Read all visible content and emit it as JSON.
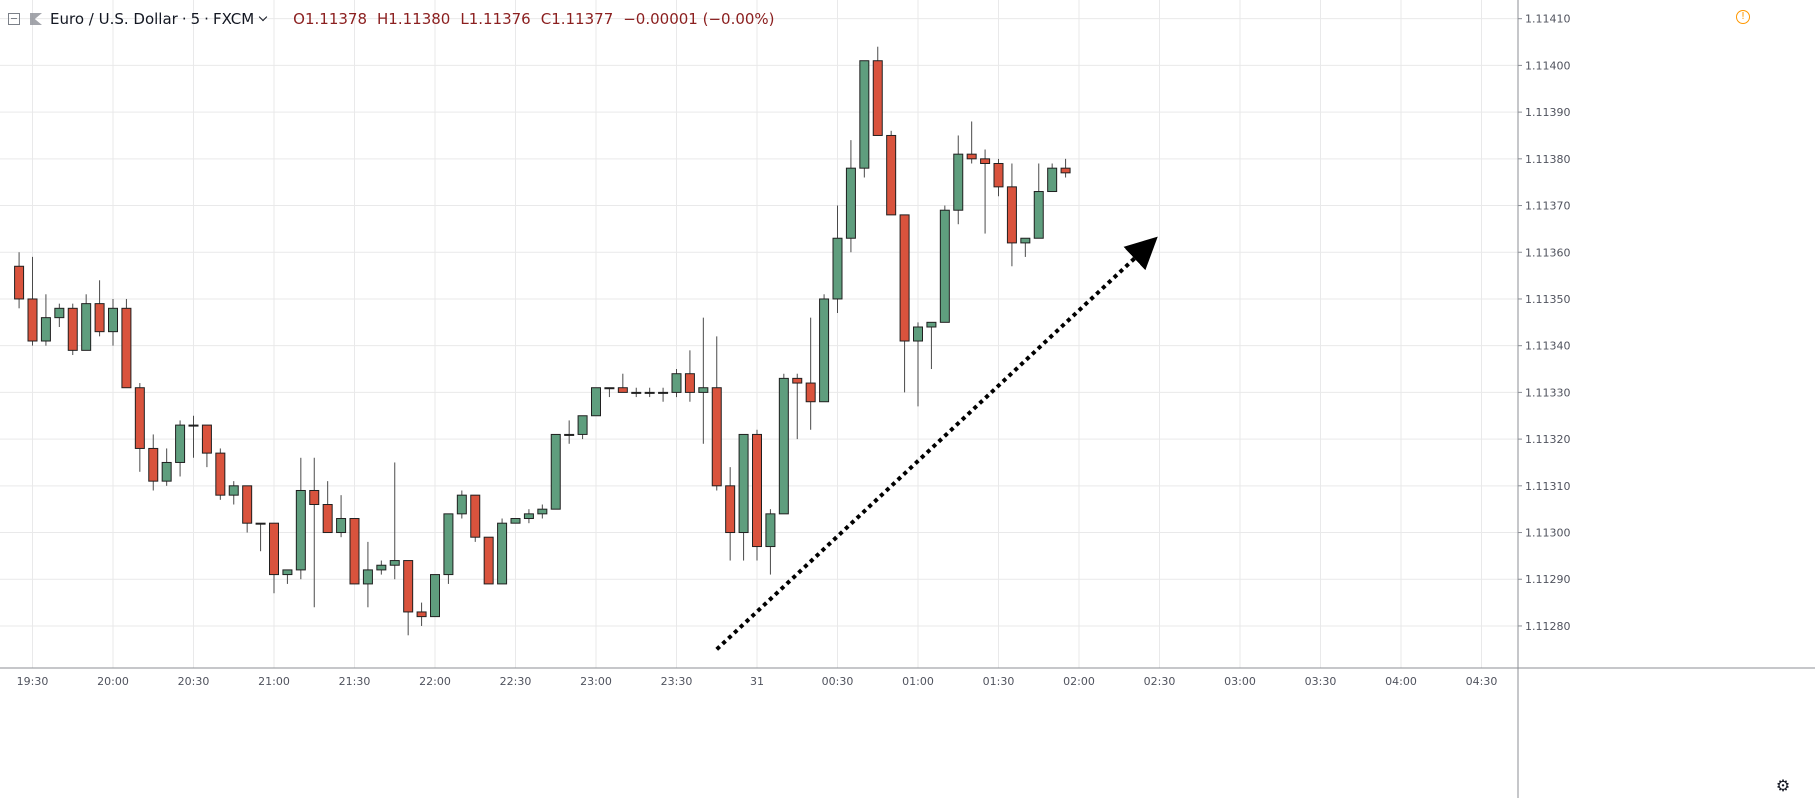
{
  "legend": {
    "symbol": "Euro / U.S. Dollar",
    "interval": "5",
    "exchange": "FXCM",
    "open_label": "O",
    "open": "1.11378",
    "high_label": "H",
    "high": "1.11380",
    "low_label": "L",
    "low": "1.11376",
    "close_label": "C",
    "close": "1.11377",
    "change": "−0.00001 (−0.00%)"
  },
  "icons": {
    "collapse": "collapse-icon",
    "symbol_flag": "flag-icon",
    "dropdown": "chevron-down-icon",
    "warning": "warning-icon",
    "warning_glyph": "!",
    "settings": "gear-icon",
    "settings_glyph": "⚙"
  },
  "colors": {
    "up": "#5f9e7e",
    "down": "#d9533d",
    "wick": "#4a4a4a",
    "grid": "#e9e9ea",
    "axis_text": "#50535e"
  },
  "chart_data": {
    "type": "candlestick",
    "title": "Euro / U.S. Dollar · 5 · FXCM",
    "y_ticks": [
      "1.11280",
      "1.11290",
      "1.11300",
      "1.11310",
      "1.11320",
      "1.11330",
      "1.11340",
      "1.11350",
      "1.11360",
      "1.11370",
      "1.11380",
      "1.11390",
      "1.11400",
      "1.11410"
    ],
    "ylim": [
      1.11271,
      1.11414
    ],
    "x_ticks": [
      "19:30",
      "20:00",
      "20:30",
      "21:00",
      "21:30",
      "22:00",
      "22:30",
      "23:00",
      "23:30",
      "31",
      "00:30",
      "01:00",
      "01:30",
      "02:00",
      "02:30",
      "03:00",
      "03:30",
      "04:00",
      "04:30"
    ],
    "grid": true,
    "candles": [
      {
        "time": "19:25",
        "o": 1.11357,
        "h": 1.1136,
        "l": 1.11348,
        "c": 1.1135
      },
      {
        "time": "19:30",
        "o": 1.1135,
        "h": 1.11359,
        "l": 1.1134,
        "c": 1.11341
      },
      {
        "time": "19:35",
        "o": 1.11341,
        "h": 1.11351,
        "l": 1.1134,
        "c": 1.11346
      },
      {
        "time": "19:40",
        "o": 1.11346,
        "h": 1.11349,
        "l": 1.11344,
        "c": 1.11348
      },
      {
        "time": "19:45",
        "o": 1.11348,
        "h": 1.11349,
        "l": 1.11338,
        "c": 1.11339
      },
      {
        "time": "19:50",
        "o": 1.11339,
        "h": 1.11351,
        "l": 1.11339,
        "c": 1.11349
      },
      {
        "time": "19:55",
        "o": 1.11349,
        "h": 1.11354,
        "l": 1.11342,
        "c": 1.11343
      },
      {
        "time": "20:00",
        "o": 1.11343,
        "h": 1.1135,
        "l": 1.1134,
        "c": 1.11348
      },
      {
        "time": "20:05",
        "o": 1.11348,
        "h": 1.1135,
        "l": 1.11331,
        "c": 1.11331
      },
      {
        "time": "20:10",
        "o": 1.11331,
        "h": 1.11332,
        "l": 1.11313,
        "c": 1.11318
      },
      {
        "time": "20:15",
        "o": 1.11318,
        "h": 1.11321,
        "l": 1.11309,
        "c": 1.11311
      },
      {
        "time": "20:20",
        "o": 1.11311,
        "h": 1.11318,
        "l": 1.1131,
        "c": 1.11315
      },
      {
        "time": "20:25",
        "o": 1.11315,
        "h": 1.11324,
        "l": 1.11312,
        "c": 1.11323
      },
      {
        "time": "20:30",
        "o": 1.11323,
        "h": 1.11325,
        "l": 1.11316,
        "c": 1.11323
      },
      {
        "time": "20:35",
        "o": 1.11323,
        "h": 1.11323,
        "l": 1.11314,
        "c": 1.11317
      },
      {
        "time": "20:40",
        "o": 1.11317,
        "h": 1.11318,
        "l": 1.11307,
        "c": 1.11308
      },
      {
        "time": "20:45",
        "o": 1.11308,
        "h": 1.11311,
        "l": 1.11306,
        "c": 1.1131
      },
      {
        "time": "20:50",
        "o": 1.1131,
        "h": 1.1131,
        "l": 1.113,
        "c": 1.11302
      },
      {
        "time": "20:55",
        "o": 1.11302,
        "h": 1.11302,
        "l": 1.11296,
        "c": 1.11302
      },
      {
        "time": "21:00",
        "o": 1.11302,
        "h": 1.11302,
        "l": 1.11287,
        "c": 1.11291
      },
      {
        "time": "21:05",
        "o": 1.11291,
        "h": 1.11292,
        "l": 1.11289,
        "c": 1.11292
      },
      {
        "time": "21:10",
        "o": 1.11292,
        "h": 1.11316,
        "l": 1.1129,
        "c": 1.11309
      },
      {
        "time": "21:15",
        "o": 1.11309,
        "h": 1.11316,
        "l": 1.11284,
        "c": 1.11306
      },
      {
        "time": "21:20",
        "o": 1.11306,
        "h": 1.11311,
        "l": 1.113,
        "c": 1.113
      },
      {
        "time": "21:25",
        "o": 1.113,
        "h": 1.11308,
        "l": 1.11299,
        "c": 1.11303
      },
      {
        "time": "21:30",
        "o": 1.11303,
        "h": 1.11303,
        "l": 1.11289,
        "c": 1.11289
      },
      {
        "time": "21:35",
        "o": 1.11289,
        "h": 1.11298,
        "l": 1.11284,
        "c": 1.11292
      },
      {
        "time": "21:40",
        "o": 1.11292,
        "h": 1.11294,
        "l": 1.11291,
        "c": 1.11293
      },
      {
        "time": "21:45",
        "o": 1.11293,
        "h": 1.11315,
        "l": 1.1129,
        "c": 1.11294
      },
      {
        "time": "21:50",
        "o": 1.11294,
        "h": 1.11294,
        "l": 1.11278,
        "c": 1.11283
      },
      {
        "time": "21:55",
        "o": 1.11283,
        "h": 1.11285,
        "l": 1.1128,
        "c": 1.11282
      },
      {
        "time": "22:00",
        "o": 1.11282,
        "h": 1.11291,
        "l": 1.11282,
        "c": 1.11291
      },
      {
        "time": "22:05",
        "o": 1.11291,
        "h": 1.11304,
        "l": 1.11289,
        "c": 1.11304
      },
      {
        "time": "22:10",
        "o": 1.11304,
        "h": 1.11309,
        "l": 1.11303,
        "c": 1.11308
      },
      {
        "time": "22:15",
        "o": 1.11308,
        "h": 1.11308,
        "l": 1.11298,
        "c": 1.11299
      },
      {
        "time": "22:20",
        "o": 1.11299,
        "h": 1.11299,
        "l": 1.11289,
        "c": 1.11289
      },
      {
        "time": "22:25",
        "o": 1.11289,
        "h": 1.11303,
        "l": 1.11289,
        "c": 1.11302
      },
      {
        "time": "22:30",
        "o": 1.11302,
        "h": 1.11303,
        "l": 1.11302,
        "c": 1.11303
      },
      {
        "time": "22:35",
        "o": 1.11303,
        "h": 1.11305,
        "l": 1.11302,
        "c": 1.11304
      },
      {
        "time": "22:40",
        "o": 1.11304,
        "h": 1.11306,
        "l": 1.11303,
        "c": 1.11305
      },
      {
        "time": "22:45",
        "o": 1.11305,
        "h": 1.11321,
        "l": 1.11305,
        "c": 1.11321
      },
      {
        "time": "22:50",
        "o": 1.11321,
        "h": 1.11324,
        "l": 1.11319,
        "c": 1.11321
      },
      {
        "time": "22:55",
        "o": 1.11321,
        "h": 1.11325,
        "l": 1.1132,
        "c": 1.11325
      },
      {
        "time": "23:00",
        "o": 1.11325,
        "h": 1.11331,
        "l": 1.11325,
        "c": 1.11331
      },
      {
        "time": "23:05",
        "o": 1.11331,
        "h": 1.11331,
        "l": 1.11329,
        "c": 1.11331
      },
      {
        "time": "23:10",
        "o": 1.11331,
        "h": 1.11334,
        "l": 1.1133,
        "c": 1.1133
      },
      {
        "time": "23:15",
        "o": 1.1133,
        "h": 1.11331,
        "l": 1.11329,
        "c": 1.1133
      },
      {
        "time": "23:20",
        "o": 1.1133,
        "h": 1.11331,
        "l": 1.11329,
        "c": 1.1133
      },
      {
        "time": "23:25",
        "o": 1.1133,
        "h": 1.11331,
        "l": 1.11328,
        "c": 1.1133
      },
      {
        "time": "23:30",
        "o": 1.1133,
        "h": 1.11335,
        "l": 1.11329,
        "c": 1.11334
      },
      {
        "time": "23:35",
        "o": 1.11334,
        "h": 1.11339,
        "l": 1.11328,
        "c": 1.1133
      },
      {
        "time": "23:40",
        "o": 1.1133,
        "h": 1.11346,
        "l": 1.11319,
        "c": 1.11331
      },
      {
        "time": "23:45",
        "o": 1.11331,
        "h": 1.11342,
        "l": 1.11309,
        "c": 1.1131
      },
      {
        "time": "23:50",
        "o": 1.1131,
        "h": 1.11314,
        "l": 1.11294,
        "c": 1.113
      },
      {
        "time": "23:55",
        "o": 1.113,
        "h": 1.11321,
        "l": 1.11294,
        "c": 1.11321
      },
      {
        "time": "00:00",
        "o": 1.11321,
        "h": 1.11322,
        "l": 1.11294,
        "c": 1.11297
      },
      {
        "time": "00:05",
        "o": 1.11297,
        "h": 1.11305,
        "l": 1.11291,
        "c": 1.11304
      },
      {
        "time": "00:10",
        "o": 1.11304,
        "h": 1.11334,
        "l": 1.11304,
        "c": 1.11333
      },
      {
        "time": "00:15",
        "o": 1.11333,
        "h": 1.11334,
        "l": 1.1132,
        "c": 1.11332
      },
      {
        "time": "00:20",
        "o": 1.11332,
        "h": 1.11346,
        "l": 1.11322,
        "c": 1.11328
      },
      {
        "time": "00:25",
        "o": 1.11328,
        "h": 1.11351,
        "l": 1.11328,
        "c": 1.1135
      },
      {
        "time": "00:30",
        "o": 1.1135,
        "h": 1.1137,
        "l": 1.11347,
        "c": 1.11363
      },
      {
        "time": "00:35",
        "o": 1.11363,
        "h": 1.11384,
        "l": 1.1136,
        "c": 1.11378
      },
      {
        "time": "00:40",
        "o": 1.11378,
        "h": 1.11401,
        "l": 1.11376,
        "c": 1.11401
      },
      {
        "time": "00:45",
        "o": 1.11401,
        "h": 1.11404,
        "l": 1.11385,
        "c": 1.11385
      },
      {
        "time": "00:50",
        "o": 1.11385,
        "h": 1.11386,
        "l": 1.11368,
        "c": 1.11368
      },
      {
        "time": "00:55",
        "o": 1.11368,
        "h": 1.11368,
        "l": 1.1133,
        "c": 1.11341
      },
      {
        "time": "01:00",
        "o": 1.11341,
        "h": 1.11345,
        "l": 1.11327,
        "c": 1.11344
      },
      {
        "time": "01:05",
        "o": 1.11344,
        "h": 1.11345,
        "l": 1.11335,
        "c": 1.11345
      },
      {
        "time": "01:10",
        "o": 1.11345,
        "h": 1.1137,
        "l": 1.11345,
        "c": 1.11369
      },
      {
        "time": "01:15",
        "o": 1.11369,
        "h": 1.11385,
        "l": 1.11366,
        "c": 1.11381
      },
      {
        "time": "01:20",
        "o": 1.11381,
        "h": 1.11388,
        "l": 1.11379,
        "c": 1.1138
      },
      {
        "time": "01:25",
        "o": 1.1138,
        "h": 1.11382,
        "l": 1.11364,
        "c": 1.11379
      },
      {
        "time": "01:30",
        "o": 1.11379,
        "h": 1.1138,
        "l": 1.11372,
        "c": 1.11374
      },
      {
        "time": "01:35",
        "o": 1.11374,
        "h": 1.11379,
        "l": 1.11357,
        "c": 1.11362
      },
      {
        "time": "01:40",
        "o": 1.11362,
        "h": 1.11363,
        "l": 1.11359,
        "c": 1.11363
      },
      {
        "time": "01:45",
        "o": 1.11363,
        "h": 1.11379,
        "l": 1.11363,
        "c": 1.11373
      },
      {
        "time": "01:50",
        "o": 1.11373,
        "h": 1.11379,
        "l": 1.11373,
        "c": 1.11378
      },
      {
        "time": "01:55",
        "o": 1.11378,
        "h": 1.1138,
        "l": 1.11376,
        "c": 1.11377
      }
    ],
    "arrow": {
      "type": "dotted-arrow",
      "from_time": "23:45",
      "from_price": 1.11275,
      "to_time": "02:25",
      "to_price": 1.11361
    }
  }
}
